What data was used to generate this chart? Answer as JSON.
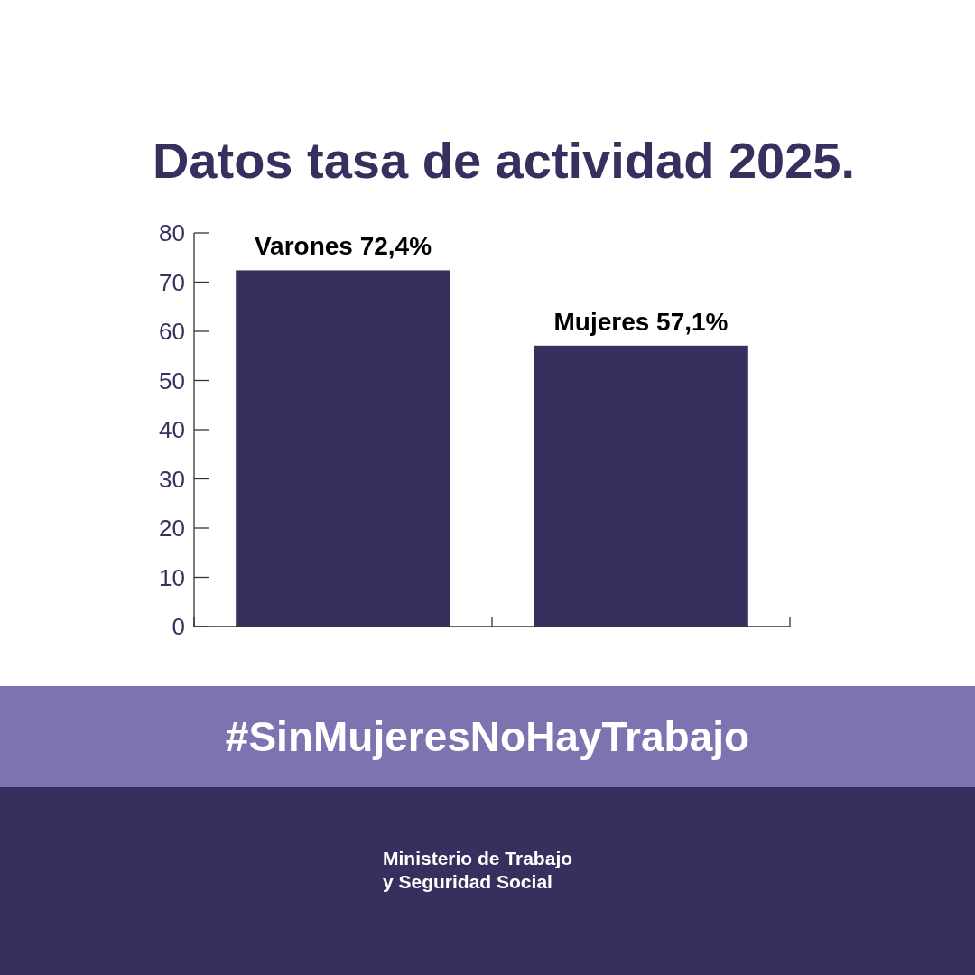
{
  "chart_data": {
    "type": "bar",
    "title": "Datos tasa de actividad 2025.",
    "categories": [
      null,
      null
    ],
    "values": [
      72.4,
      57.1
    ],
    "color": "#37305f",
    "value_labels": [
      "Varones 72,4%",
      "Mujeres 57,1%"
    ],
    "ylim": [
      0,
      80
    ],
    "yticks": [
      0,
      10,
      20,
      30,
      40,
      50,
      60,
      70,
      80
    ],
    "annotations": [
      "#SinMujeresNoHayTrabajo",
      "Ministerio de Trabajo\ny Seguridad Social"
    ]
  }
}
